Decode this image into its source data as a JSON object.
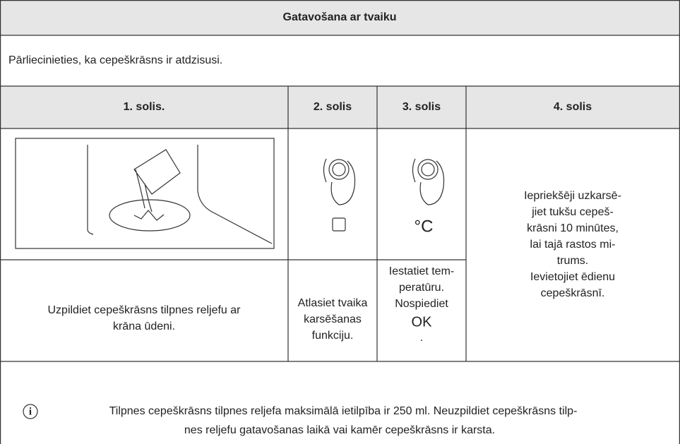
{
  "header": {
    "title": "Gatavošana ar tvaiku"
  },
  "precondition": "Pārliecinieties, ka cepeškrāsns ir atdzisusi.",
  "steps": [
    {
      "title": "1. solis.",
      "text": [
        "Uzpildiet cepeškrāsns tilpnes reljefu ar",
        "krāna ūdeni."
      ]
    },
    {
      "title": "2. solis",
      "text": [
        "Atlasiet tvaika",
        "karsēšanas",
        "funkciju."
      ]
    },
    {
      "title": "3. solis",
      "symbol": "°C",
      "text": [
        "Iestatiet tem-",
        "peratūru.",
        "Nospiediet"
      ],
      "button": "OK",
      "dot": "."
    },
    {
      "title": "4. solis",
      "text": [
        "Iepriekšēji uzkarsē-",
        "jiet tukšu cepeš-",
        "krāsni 10 minūtes,",
        "lai tajā rastos mi-",
        "trums.",
        "Ievietojiet ēdienu",
        "cepeškrāsnī."
      ]
    }
  ],
  "note": {
    "icon": "i",
    "lines": [
      "Tilpnes cepeškrāsns tilpnes reljefa maksimālā ietilpība ir 250 ml. Neuzpildiet cepeškrāsns tilp-",
      "nes reljefu gatavošanas laikā vai kamēr cepeškrāsns ir karsta."
    ]
  }
}
